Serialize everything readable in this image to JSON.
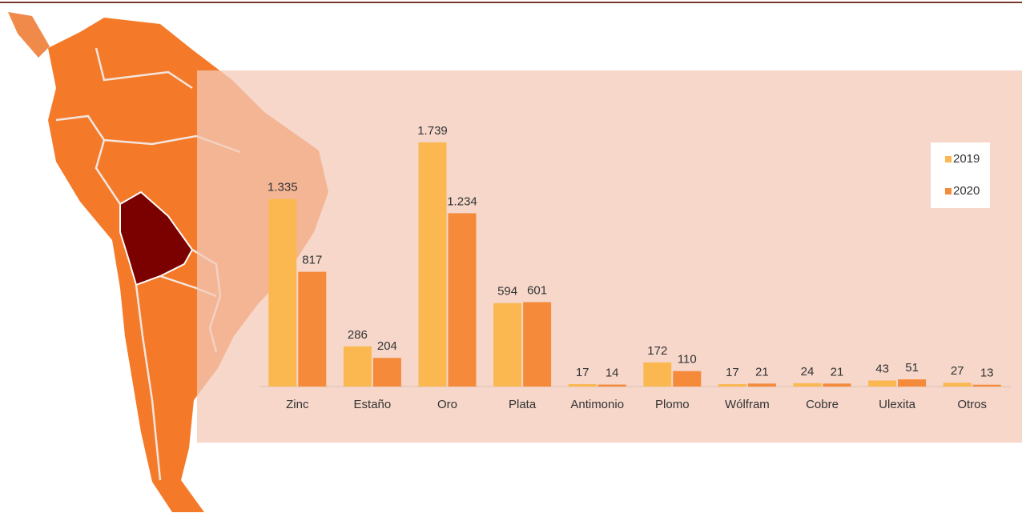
{
  "chart_data": {
    "type": "bar",
    "categories": [
      "Zinc",
      "Estaño",
      "Oro",
      "Plata",
      "Antimonio",
      "Plomo",
      "Wólfram",
      "Cobre",
      "Ulexita",
      "Otros"
    ],
    "series": [
      {
        "name": "2019",
        "color": "#fbb850",
        "values": [
          1335,
          286,
          1739,
          594,
          17,
          172,
          17,
          24,
          43,
          27
        ],
        "value_labels": [
          "1.335",
          "286",
          "1.739",
          "594",
          "17",
          "172",
          "17",
          "24",
          "43",
          "27"
        ]
      },
      {
        "name": "2020",
        "color": "#f58a3a",
        "values": [
          817,
          204,
          1234,
          601,
          14,
          110,
          21,
          21,
          51,
          13
        ],
        "value_labels": [
          "817",
          "204",
          "1.234",
          "601",
          "14",
          "110",
          "21",
          "21",
          "51",
          "13"
        ]
      }
    ],
    "ylim": [
      0,
      2000
    ],
    "legend": "upper right"
  }
}
